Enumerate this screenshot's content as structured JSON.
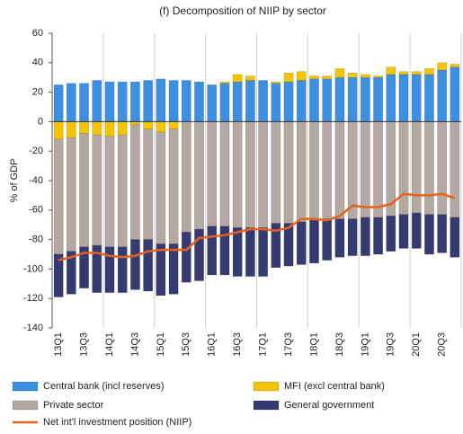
{
  "chart_data": {
    "type": "bar",
    "title": "(f) Decomposition of NIIP by sector",
    "y_label": "% of GDP",
    "categories": [
      "13Q1",
      null,
      "13Q3",
      null,
      "14Q1",
      null,
      "14Q3",
      null,
      "15Q1",
      null,
      "15Q3",
      null,
      "16Q1",
      null,
      "16Q3",
      null,
      "17Q1",
      null,
      "17Q3",
      null,
      "18Q1",
      null,
      "18Q3",
      null,
      "19Q1",
      null,
      "19Q3",
      null,
      "20Q1",
      null,
      "20Q3",
      null
    ],
    "ylim": [
      -140,
      60
    ],
    "yticks": [
      60,
      40,
      20,
      0,
      -20,
      -40,
      -60,
      -80,
      -100,
      -120,
      -140
    ],
    "grid": false,
    "series": [
      {
        "name": "Central bank (incl reserves)",
        "type": "bar",
        "color": "#3d8fe0",
        "values": [
          25,
          26,
          26,
          28,
          27,
          27,
          27,
          28,
          29,
          28,
          28,
          27,
          25,
          26,
          27,
          28,
          28,
          26,
          27,
          28,
          29,
          29,
          30,
          30,
          30,
          30,
          32,
          32,
          32,
          32,
          35,
          37
        ]
      },
      {
        "name": "MFI (excl central bank)",
        "type": "bar",
        "color": "#f5c400",
        "values": [
          -12,
          -11,
          -8,
          -9,
          -10,
          -9,
          -2,
          -5,
          -7,
          -5,
          0,
          0,
          0,
          1,
          5,
          3,
          0,
          1,
          6,
          6,
          2,
          2,
          6,
          3,
          2,
          1,
          5,
          2,
          2,
          4,
          5,
          2
        ]
      },
      {
        "name": "Private sector",
        "type": "bar",
        "color": "#b3a8a2",
        "values": [
          -78,
          -77,
          -77,
          -75,
          -75,
          -76,
          -78,
          -75,
          -76,
          -78,
          -75,
          -73,
          -71,
          -71,
          -72,
          -72,
          -72,
          -69,
          -69,
          -68,
          -67,
          -66,
          -66,
          -66,
          -65,
          -65,
          -64,
          -63,
          -62,
          -63,
          -63,
          -65
        ]
      },
      {
        "name": "General government",
        "type": "bar",
        "color": "#353b70",
        "values": [
          -29,
          -29,
          -28,
          -32,
          -31,
          -31,
          -34,
          -35,
          -35,
          -34,
          -34,
          -35,
          -33,
          -33,
          -33,
          -33,
          -33,
          -30,
          -29,
          -29,
          -29,
          -28,
          -26,
          -25,
          -26,
          -25,
          -24,
          -23,
          -24,
          -27,
          -26,
          -27
        ]
      },
      {
        "name": "Net int'l investment position (NIIP)",
        "type": "line",
        "color": "#e8601c",
        "values": [
          -94,
          -92,
          -89,
          -89,
          -91,
          -92,
          -91,
          -88,
          -87,
          -87,
          -87,
          -79,
          -78,
          -77,
          -75,
          -73,
          -73,
          -74,
          -72,
          -66,
          -66,
          -67,
          -64,
          -57,
          -58,
          -58,
          -56,
          -49,
          -50,
          -50,
          -49,
          -52
        ]
      }
    ]
  }
}
